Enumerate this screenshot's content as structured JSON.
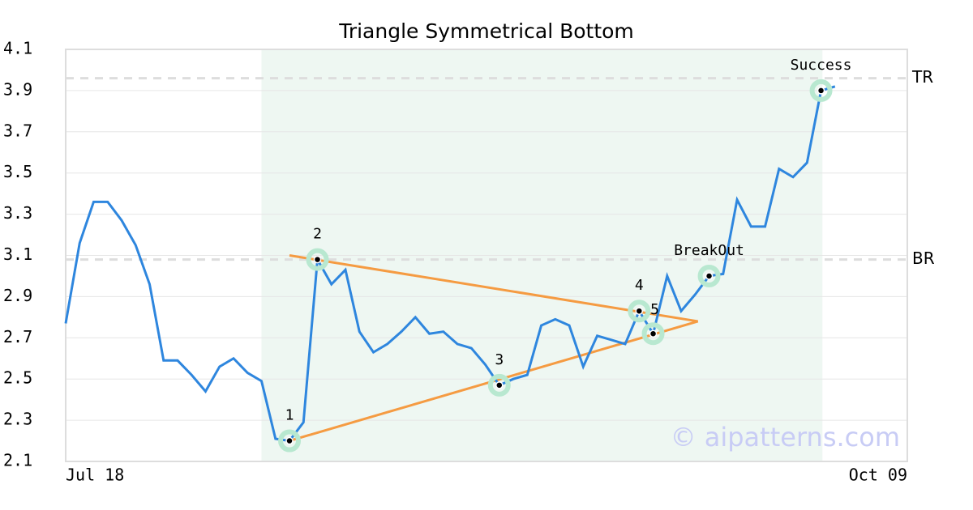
{
  "chart_data": {
    "type": "line",
    "title": "Triangle Symmetrical Bottom",
    "values": [
      2.77,
      3.16,
      3.36,
      3.36,
      3.27,
      3.15,
      2.96,
      2.59,
      2.59,
      2.52,
      2.44,
      2.56,
      2.6,
      2.53,
      2.49,
      2.21,
      2.2,
      2.29,
      3.08,
      2.96,
      3.03,
      2.73,
      2.63,
      2.67,
      2.73,
      2.8,
      2.72,
      2.73,
      2.67,
      2.65,
      2.57,
      2.47,
      2.5,
      2.52,
      2.76,
      2.79,
      2.76,
      2.56,
      2.71,
      2.69,
      2.67,
      2.83,
      2.72,
      3.0,
      2.83,
      2.91,
      3.0,
      3.01,
      3.37,
      3.24,
      3.24,
      3.52,
      3.48,
      3.55,
      3.9,
      3.92
    ],
    "color": "#2e86de",
    "xlim": [
      0,
      60.17
    ],
    "xticks": [
      {
        "value": 0,
        "label": "Jul 18"
      },
      {
        "value": 60.17,
        "label": "Oct 09"
      }
    ],
    "ylim": [
      2.1,
      4.1
    ],
    "yticks": [
      2.1,
      2.3,
      2.5,
      2.7,
      2.9,
      3.1,
      3.3,
      3.5,
      3.7,
      3.9,
      4.1
    ],
    "grid": true,
    "highlight": {
      "from": 14,
      "to": 54.1,
      "color": "#eef7f2"
    },
    "triangle": {
      "color": "#f59b42",
      "lines": [
        {
          "x": [
            16,
            45.2
          ],
          "y": [
            3.1,
            2.78
          ]
        },
        {
          "x": [
            16,
            45.2
          ],
          "y": [
            2.2,
            2.78
          ]
        }
      ]
    },
    "points": [
      {
        "label": "1",
        "x": 16,
        "y": 2.2
      },
      {
        "label": "2",
        "x": 18,
        "y": 3.08
      },
      {
        "label": "3",
        "x": 31,
        "y": 2.47
      },
      {
        "label": "4",
        "x": 41,
        "y": 2.83
      },
      {
        "label": "5",
        "x": 42,
        "y": 2.72
      },
      {
        "label": "BreakOut",
        "x": 46,
        "y": 3.0
      },
      {
        "label": "Success",
        "x": 54,
        "y": 3.9
      }
    ],
    "ref_lines": [
      {
        "label": "TR",
        "value": 3.96
      },
      {
        "label": "BR",
        "value": 3.08
      }
    ],
    "watermark": "© aipatterns.com"
  }
}
